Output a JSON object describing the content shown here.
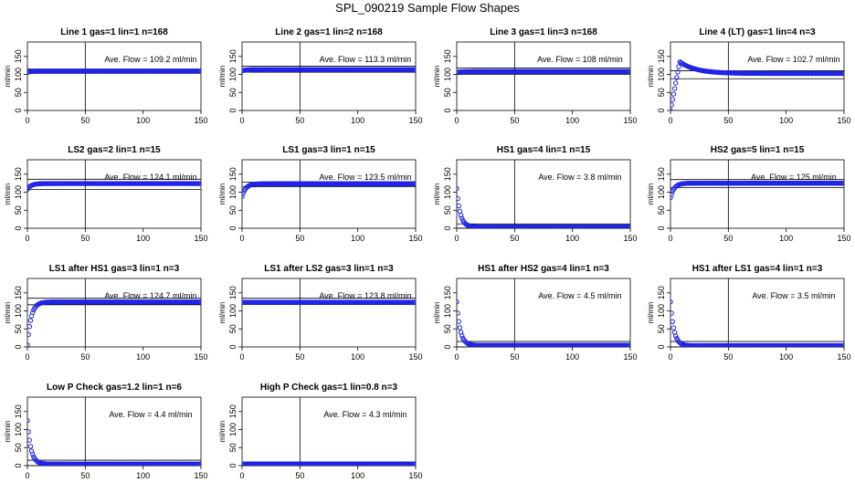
{
  "title": "SPL_090219  Sample Flow Shapes",
  "chart_data": [
    {
      "type": "scatter",
      "title": "Line 1 gas=1 lin=1 n=168",
      "ylabel": "ml/min",
      "annotation": "Ave. Flow =  109.2  ml/min",
      "mean": 109.2,
      "band": [
        103,
        115
      ],
      "xlim": [
        0,
        150
      ],
      "ylim": [
        0,
        190
      ],
      "xticks": [
        0,
        50,
        100,
        150
      ],
      "yticks": [
        0,
        50,
        100,
        150
      ],
      "vline": 50,
      "profile": "flat",
      "start": 106
    },
    {
      "type": "scatter",
      "title": "Line 2 gas=1 lin=2 n=168",
      "ylabel": "ml/min",
      "annotation": "Ave. Flow =  113.3  ml/min",
      "mean": 113.3,
      "band": [
        106,
        123
      ],
      "xlim": [
        0,
        150
      ],
      "ylim": [
        0,
        190
      ],
      "xticks": [
        0,
        50,
        100,
        150
      ],
      "yticks": [
        0,
        50,
        100,
        150
      ],
      "vline": 50,
      "profile": "flat",
      "start": 110
    },
    {
      "type": "scatter",
      "title": "Line 3 gas=1 lin=3 n=168",
      "ylabel": "ml/min",
      "annotation": "Ave. Flow =  108  ml/min",
      "mean": 108,
      "band": [
        100,
        118
      ],
      "xlim": [
        0,
        150
      ],
      "ylim": [
        0,
        190
      ],
      "xticks": [
        0,
        50,
        100,
        150
      ],
      "yticks": [
        0,
        50,
        100,
        150
      ],
      "vline": 50,
      "profile": "flat",
      "start": 105
    },
    {
      "type": "scatter",
      "title": "Line 4 (LT) gas=1 lin=4 n=3",
      "ylabel": "ml/min",
      "annotation": "Ave. Flow =  102.7  ml/min",
      "mean": 102.7,
      "band": [
        88,
        110
      ],
      "xlim": [
        0,
        150
      ],
      "ylim": [
        0,
        190
      ],
      "xticks": [
        0,
        50,
        100,
        150
      ],
      "yticks": [
        0,
        50,
        100,
        150
      ],
      "vline": 50,
      "profile": "overshoot",
      "start": 0,
      "peak": 135
    },
    {
      "type": "scatter",
      "title": "LS2 gas=2 lin=1 n=15",
      "ylabel": "ml/min",
      "annotation": "Ave. Flow =  124.1  ml/min",
      "mean": 124.1,
      "band": [
        108,
        136
      ],
      "xlim": [
        0,
        150
      ],
      "ylim": [
        0,
        190
      ],
      "xticks": [
        0,
        50,
        100,
        150
      ],
      "yticks": [
        0,
        50,
        100,
        150
      ],
      "vline": 50,
      "profile": "rise",
      "start": 108
    },
    {
      "type": "scatter",
      "title": "LS1 gas=3 lin=1 n=15",
      "ylabel": "ml/min",
      "annotation": "Ave. Flow =  123.5  ml/min",
      "mean": 123.5,
      "band": [
        115,
        128
      ],
      "xlim": [
        0,
        150
      ],
      "ylim": [
        0,
        190
      ],
      "xticks": [
        0,
        50,
        100,
        150
      ],
      "yticks": [
        0,
        50,
        100,
        150
      ],
      "vline": 50,
      "profile": "rise",
      "start": 88
    },
    {
      "type": "scatter",
      "title": "HS1 gas=4 lin=1 n=15",
      "ylabel": "ml/min",
      "annotation": "Ave. Flow =  3.8  ml/min",
      "mean": 3.8,
      "band": [
        0,
        12
      ],
      "xlim": [
        0,
        150
      ],
      "ylim": [
        0,
        190
      ],
      "xticks": [
        0,
        50,
        100,
        150
      ],
      "yticks": [
        0,
        50,
        100,
        150
      ],
      "vline": 50,
      "profile": "decay",
      "start": 110
    },
    {
      "type": "scatter",
      "title": "HS2 gas=5 lin=1 n=15",
      "ylabel": "ml/min",
      "annotation": "Ave. Flow =  125  ml/min",
      "mean": 125,
      "band": [
        113,
        135
      ],
      "xlim": [
        0,
        150
      ],
      "ylim": [
        0,
        190
      ],
      "xticks": [
        0,
        50,
        100,
        150
      ],
      "yticks": [
        0,
        50,
        100,
        150
      ],
      "vline": 50,
      "profile": "rise",
      "start": 85
    },
    {
      "type": "scatter",
      "title": "LS1 after HS1 gas=3 lin=1 n=3",
      "ylabel": "ml/min",
      "annotation": "Ave. Flow =  124.7  ml/min",
      "mean": 124.7,
      "band": [
        117,
        135
      ],
      "xlim": [
        0,
        150
      ],
      "ylim": [
        0,
        190
      ],
      "xticks": [
        0,
        50,
        100,
        150
      ],
      "yticks": [
        0,
        50,
        100,
        150
      ],
      "vline": 50,
      "profile": "rise",
      "start": 5
    },
    {
      "type": "scatter",
      "title": "LS1 after LS2 gas=3 lin=1 n=3",
      "ylabel": "ml/min",
      "annotation": "Ave. Flow =  123.8  ml/min",
      "mean": 123.8,
      "band": [
        118,
        135
      ],
      "xlim": [
        0,
        150
      ],
      "ylim": [
        0,
        190
      ],
      "xticks": [
        0,
        50,
        100,
        150
      ],
      "yticks": [
        0,
        50,
        100,
        150
      ],
      "vline": 50,
      "profile": "flat",
      "start": 124
    },
    {
      "type": "scatter",
      "title": "HS1 after HS2 gas=4 lin=1 n=3",
      "ylabel": "ml/min",
      "annotation": "Ave. Flow =  4.5  ml/min",
      "mean": 4.5,
      "band": [
        0,
        15
      ],
      "xlim": [
        0,
        150
      ],
      "ylim": [
        0,
        190
      ],
      "xticks": [
        0,
        50,
        100,
        150
      ],
      "yticks": [
        0,
        50,
        100,
        150
      ],
      "vline": 50,
      "profile": "decay",
      "start": 125
    },
    {
      "type": "scatter",
      "title": "HS1 after LS1 gas=4 lin=1 n=3",
      "ylabel": "ml/min",
      "annotation": "Ave. Flow =  3.5  ml/min",
      "mean": 3.5,
      "band": [
        0,
        15
      ],
      "xlim": [
        0,
        150
      ],
      "ylim": [
        0,
        190
      ],
      "xticks": [
        0,
        50,
        100,
        150
      ],
      "yticks": [
        0,
        50,
        100,
        150
      ],
      "vline": 50,
      "profile": "decay",
      "start": 125
    },
    {
      "type": "scatter",
      "title": "Low P Check gas=1.2 lin=1 n=6",
      "ylabel": "ml/min",
      "annotation": "Ave. Flow =  4.4  ml/min",
      "mean": 4.4,
      "band": [
        0,
        15
      ],
      "xlim": [
        0,
        150
      ],
      "ylim": [
        0,
        190
      ],
      "xticks": [
        0,
        50,
        100,
        150
      ],
      "yticks": [
        0,
        50,
        100,
        150
      ],
      "vline": 50,
      "profile": "decay",
      "start": 125
    },
    {
      "type": "scatter",
      "title": "High P Check gas=1 lin=0.8 n=3",
      "ylabel": "ml/min",
      "annotation": "Ave. Flow =  4.3  ml/min",
      "mean": 4.3,
      "band": [
        0,
        10
      ],
      "xlim": [
        0,
        150
      ],
      "ylim": [
        0,
        190
      ],
      "xticks": [
        0,
        50,
        100,
        150
      ],
      "yticks": [
        0,
        50,
        100,
        150
      ],
      "vline": 50,
      "profile": "flat",
      "start": 4
    }
  ],
  "colors": {
    "points": "#1e22e6",
    "axis": "#000000"
  }
}
